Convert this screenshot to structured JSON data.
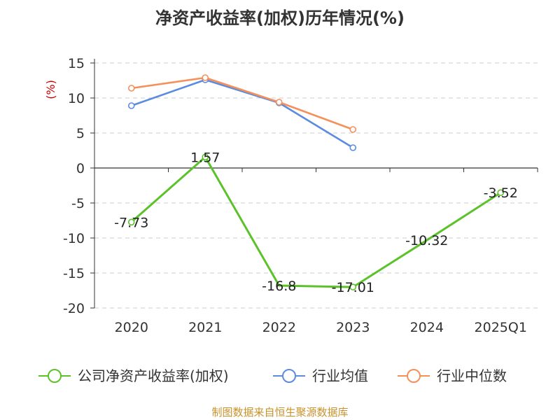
{
  "title": "净资产收益率(加权)历年情况(%)",
  "source": "制图数据来自恒生聚源数据库",
  "chart_data": {
    "type": "line",
    "title": "净资产收益率(加权)历年情况(%)",
    "unit_label": "(%)",
    "categories": [
      "2020",
      "2021",
      "2022",
      "2023",
      "2024",
      "2025Q1"
    ],
    "ylim": [
      -20,
      15
    ],
    "yticks": [
      15,
      10,
      5,
      0,
      -5,
      -10,
      -15,
      -20
    ],
    "grid": true,
    "legend_position": "bottom",
    "series": [
      {
        "name": "公司净资产收益率(加权)",
        "color": "#5cc22a",
        "values": [
          -7.73,
          1.57,
          -16.8,
          -17.01,
          -10.32,
          -3.52
        ],
        "labels": [
          "-7.73",
          "1.57",
          "-16.8",
          "-17.01",
          "-10.32",
          "-3.52"
        ],
        "show_markers": [
          true,
          true,
          false,
          true,
          false,
          true
        ]
      },
      {
        "name": "行业均值",
        "color": "#5b8ce0",
        "values": [
          8.9,
          12.6,
          9.3,
          2.9,
          null,
          null
        ]
      },
      {
        "name": "行业中位数",
        "color": "#f5905a",
        "values": [
          11.4,
          12.9,
          9.4,
          5.5,
          null,
          null
        ]
      }
    ]
  }
}
